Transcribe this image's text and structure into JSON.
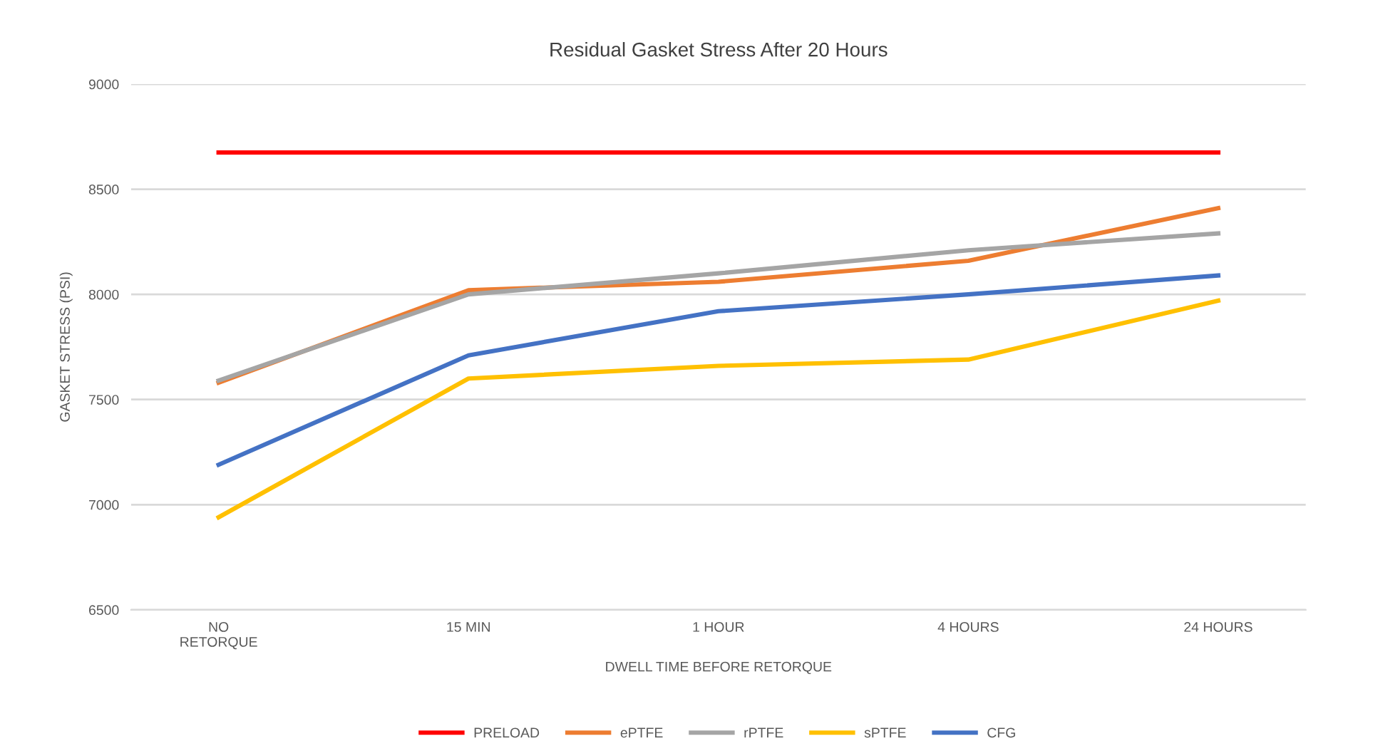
{
  "chart_data": {
    "type": "line",
    "title": "Residual Gasket Stress After 20 Hours",
    "xlabel": "DWELL TIME BEFORE RETORQUE",
    "ylabel": "GASKET STRESS (PSI)",
    "categories": [
      "NO\nRETORQUE",
      "15 MIN",
      "1 HOUR",
      "4 HOURS",
      "24 HOURS"
    ],
    "ylim": [
      6500,
      9000
    ],
    "yticks": [
      6500,
      7000,
      7500,
      8000,
      8500,
      9000
    ],
    "grid": "y",
    "legend": "bottom",
    "marker": "none",
    "line_style": "solid",
    "series": [
      {
        "name": "PRELOAD",
        "color": "#ff0000",
        "values": [
          8675,
          8675,
          8675,
          8675,
          8675
        ]
      },
      {
        "name": "ePTFE",
        "color": "#ed7d31",
        "values": [
          7580,
          8020,
          8060,
          8160,
          8410
        ]
      },
      {
        "name": "rPTFE",
        "color": "#a5a5a5",
        "values": [
          7590,
          8000,
          8100,
          8210,
          8290
        ]
      },
      {
        "name": "sPTFE",
        "color": "#ffc000",
        "values": [
          6940,
          7600,
          7660,
          7690,
          7970
        ]
      },
      {
        "name": "CFG",
        "color": "#4472c4",
        "values": [
          7190,
          7710,
          7920,
          8000,
          8090
        ]
      }
    ]
  }
}
